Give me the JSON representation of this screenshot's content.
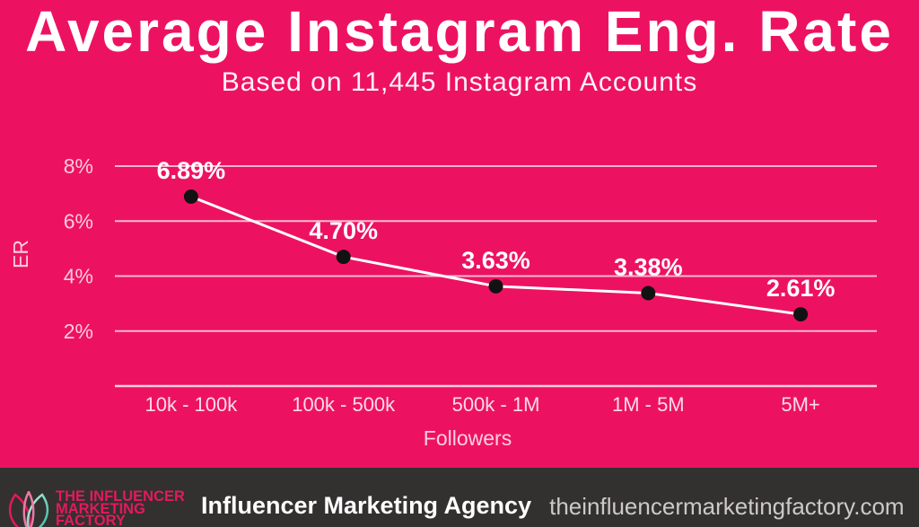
{
  "chart_data": {
    "type": "line",
    "title": "Average Instagram Eng. Rate",
    "subtitle": "Based on 11,445 Instagram Accounts",
    "xlabel": "Followers",
    "ylabel": "ER",
    "categories": [
      "10k - 100k",
      "100k - 500k",
      "500k - 1M",
      "1M - 5M",
      "5M+"
    ],
    "series": [
      {
        "name": "Average Instagram Engagement Rate",
        "values": [
          6.89,
          4.7,
          3.63,
          3.38,
          2.61
        ]
      }
    ],
    "point_labels": [
      "6.89%",
      "4.70%",
      "3.63%",
      "3.38%",
      "2.61%"
    ],
    "y_ticks": [
      2,
      4,
      6,
      8
    ],
    "y_tick_labels": [
      "2%",
      "4%",
      "6%",
      "8%"
    ],
    "ylim": [
      0,
      8
    ],
    "grid": true,
    "legend": false,
    "line_color": "#FFFFFF",
    "point_color": "#121212",
    "label_color": "#FFFFFF"
  },
  "footer": {
    "logo": {
      "icon": "lotus-logo-icon",
      "lines": [
        "THE INFLUENCER",
        "MARKETING",
        "FACTORY"
      ]
    },
    "agency_label": "Influencer Marketing Agency",
    "website": "theinfluencermarketingfactory.com"
  },
  "colors": {
    "background": "#ED1261",
    "footer_background": "#333030",
    "title_text": "#FFFFFF",
    "grid_line": "rgba(255,255,255,0.7)",
    "logo_pink": "#E4195E",
    "logo_teal": "#2BB9A0",
    "website_text": "#CCC9C9"
  }
}
